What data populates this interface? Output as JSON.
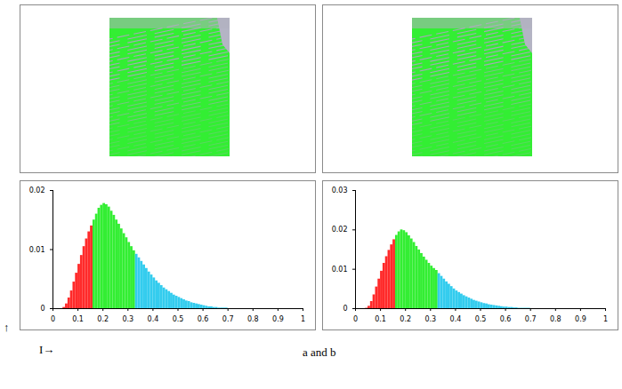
{
  "chart_data": [
    {
      "type": "image",
      "color": "#33ee33"
    },
    {
      "type": "image",
      "color": "#33ee33"
    },
    {
      "type": "histogram",
      "bins": [
        0.04,
        0.05,
        0.06,
        0.07,
        0.08,
        0.09,
        0.1,
        0.11,
        0.12,
        0.13,
        0.14,
        0.15,
        0.16,
        0.17,
        0.18,
        0.19,
        0.2,
        0.21,
        0.22,
        0.23,
        0.24,
        0.25,
        0.26,
        0.27,
        0.28,
        0.29,
        0.3,
        0.31,
        0.32,
        0.33,
        0.34,
        0.35,
        0.36,
        0.37,
        0.38,
        0.39,
        0.4,
        0.41,
        0.42,
        0.43,
        0.44,
        0.45,
        0.46,
        0.47,
        0.48,
        0.49,
        0.5,
        0.51,
        0.52,
        0.53,
        0.54,
        0.55,
        0.56,
        0.57,
        0.58,
        0.59,
        0.6,
        0.61,
        0.62,
        0.63,
        0.64,
        0.65,
        0.66,
        0.67,
        0.68,
        0.69,
        0.7
      ],
      "values": [
        0.0002,
        0.0008,
        0.0018,
        0.003,
        0.0045,
        0.006,
        0.0075,
        0.009,
        0.0105,
        0.0118,
        0.013,
        0.014,
        0.015,
        0.016,
        0.017,
        0.0175,
        0.0178,
        0.0176,
        0.0172,
        0.0165,
        0.0158,
        0.015,
        0.0143,
        0.0135,
        0.0127,
        0.012,
        0.0112,
        0.0105,
        0.0098,
        0.0092,
        0.0086,
        0.008,
        0.0074,
        0.0068,
        0.0062,
        0.0057,
        0.0052,
        0.0047,
        0.0043,
        0.0039,
        0.0035,
        0.0032,
        0.0029,
        0.0026,
        0.0023,
        0.0021,
        0.0019,
        0.0017,
        0.0015,
        0.0013,
        0.0012,
        0.001,
        0.0009,
        0.0008,
        0.0007,
        0.0006,
        0.0005,
        0.0004,
        0.0003,
        0.0003,
        0.0002,
        0.0002,
        0.0001,
        0.0001,
        0.0001,
        0.0001
      ],
      "colors": [
        "#ff2a2a",
        "#ff2a2a",
        "#ff2a2a",
        "#ff2a2a",
        "#ff2a2a",
        "#ff2a2a",
        "#ff2a2a",
        "#ff2a2a",
        "#ff2a2a",
        "#ff2a2a",
        "#ff2a2a",
        "#ff2a2a",
        "#33ee33",
        "#33ee33",
        "#33ee33",
        "#33ee33",
        "#33ee33",
        "#33ee33",
        "#33ee33",
        "#33ee33",
        "#33ee33",
        "#33ee33",
        "#33ee33",
        "#33ee33",
        "#33ee33",
        "#33ee33",
        "#33ee33",
        "#33ee33",
        "#33ee33",
        "#33ccee",
        "#33ccee",
        "#33ccee",
        "#33ccee",
        "#33ccee",
        "#33ccee",
        "#33ccee",
        "#33ccee",
        "#33ccee",
        "#33ccee",
        "#33ccee",
        "#33ccee",
        "#33ccee",
        "#33ccee",
        "#33ccee",
        "#33ccee",
        "#33ccee",
        "#33ccee",
        "#33ccee",
        "#33ccee",
        "#33ccee",
        "#33ccee",
        "#33ccee",
        "#33ccee",
        "#33ccee",
        "#33ccee",
        "#33ccee",
        "#33ccee",
        "#33ccee",
        "#33ccee",
        "#33ccee",
        "#33ccee",
        "#33ccee",
        "#33ccee",
        "#33ccee",
        "#33ccee",
        "#33ccee"
      ],
      "xlim": [
        0,
        1
      ],
      "xticks": [
        0,
        0.1,
        0.2,
        0.3,
        0.4,
        0.5,
        0.6,
        0.7,
        0.8,
        0.9,
        1
      ],
      "ylim": [
        0,
        0.02
      ],
      "yticks": [
        0,
        0.01,
        0.02
      ]
    },
    {
      "type": "histogram",
      "bins": [
        0.04,
        0.05,
        0.06,
        0.07,
        0.08,
        0.09,
        0.1,
        0.11,
        0.12,
        0.13,
        0.14,
        0.15,
        0.16,
        0.17,
        0.18,
        0.19,
        0.2,
        0.21,
        0.22,
        0.23,
        0.24,
        0.25,
        0.26,
        0.27,
        0.28,
        0.29,
        0.3,
        0.31,
        0.32,
        0.33,
        0.34,
        0.35,
        0.36,
        0.37,
        0.38,
        0.39,
        0.4,
        0.41,
        0.42,
        0.43,
        0.44,
        0.45,
        0.46,
        0.47,
        0.48,
        0.49,
        0.5,
        0.51,
        0.52,
        0.53,
        0.54,
        0.55,
        0.56,
        0.57,
        0.58,
        0.59,
        0.6,
        0.61,
        0.62,
        0.63,
        0.64,
        0.65,
        0.66,
        0.67,
        0.68,
        0.69,
        0.7
      ],
      "values": [
        0.0001,
        0.0006,
        0.0018,
        0.0035,
        0.0055,
        0.0075,
        0.0095,
        0.0115,
        0.0132,
        0.0148,
        0.0162,
        0.0175,
        0.0186,
        0.0195,
        0.02,
        0.0198,
        0.0193,
        0.0185,
        0.0177,
        0.0168,
        0.0158,
        0.0149,
        0.014,
        0.0131,
        0.0123,
        0.0115,
        0.0108,
        0.0102,
        0.0097,
        0.0089,
        0.0082,
        0.0075,
        0.0068,
        0.0062,
        0.0056,
        0.005,
        0.0045,
        0.0041,
        0.0037,
        0.0033,
        0.003,
        0.0027,
        0.0024,
        0.0021,
        0.0019,
        0.0017,
        0.0015,
        0.0013,
        0.0012,
        0.001,
        0.0009,
        0.0008,
        0.0007,
        0.0006,
        0.0005,
        0.0004,
        0.0004,
        0.0003,
        0.0003,
        0.0002,
        0.0002,
        0.0001,
        0.0001,
        0.0001,
        0.0001,
        0.0001
      ],
      "colors": [
        "#ff2a2a",
        "#ff2a2a",
        "#ff2a2a",
        "#ff2a2a",
        "#ff2a2a",
        "#ff2a2a",
        "#ff2a2a",
        "#ff2a2a",
        "#ff2a2a",
        "#ff2a2a",
        "#ff2a2a",
        "#ff2a2a",
        "#33ee33",
        "#33ee33",
        "#33ee33",
        "#33ee33",
        "#33ee33",
        "#33ee33",
        "#33ee33",
        "#33ee33",
        "#33ee33",
        "#33ee33",
        "#33ee33",
        "#33ee33",
        "#33ee33",
        "#33ee33",
        "#33ee33",
        "#33ee33",
        "#33ee33",
        "#33ccee",
        "#33ccee",
        "#33ccee",
        "#33ccee",
        "#33ccee",
        "#33ccee",
        "#33ccee",
        "#33ccee",
        "#33ccee",
        "#33ccee",
        "#33ccee",
        "#33ccee",
        "#33ccee",
        "#33ccee",
        "#33ccee",
        "#33ccee",
        "#33ccee",
        "#33ccee",
        "#33ccee",
        "#33ccee",
        "#33ccee",
        "#33ccee",
        "#33ccee",
        "#33ccee",
        "#33ccee",
        "#33ccee",
        "#33ccee",
        "#33ccee",
        "#33ccee",
        "#33ccee",
        "#33ccee",
        "#33ccee",
        "#33ccee",
        "#33ccee",
        "#33ccee",
        "#33ccee",
        "#33ccee"
      ],
      "xlim": [
        0,
        1
      ],
      "xticks": [
        0,
        0.1,
        0.2,
        0.3,
        0.4,
        0.5,
        0.6,
        0.7,
        0.8,
        0.9,
        1
      ],
      "ylim": [
        0,
        0.03
      ],
      "yticks": [
        0,
        0.01,
        0.02,
        0.03
      ]
    }
  ],
  "caption": "a and b",
  "annotations": [
    "↑",
    "I→"
  ]
}
